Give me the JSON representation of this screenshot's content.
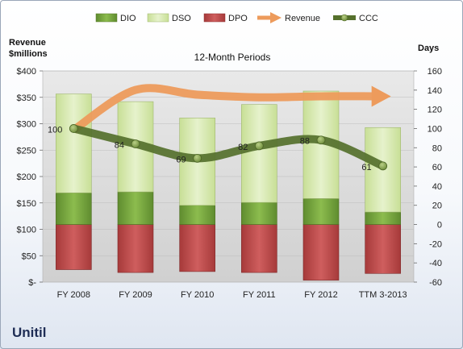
{
  "company": "Unitil",
  "chart_data": {
    "type": "bar",
    "title": "12-Month Periods",
    "categories": [
      "FY 2008",
      "FY 2009",
      "FY 2010",
      "FY 2011",
      "FY 2012",
      "TTM 3-2013"
    ],
    "left_axis": {
      "label_line1": "Revenue",
      "label_line2": "$millions",
      "ticks": [
        "$-",
        "$50",
        "$100",
        "$150",
        "$200",
        "$250",
        "$300",
        "$350",
        "$400"
      ],
      "ylim": [
        0,
        400
      ]
    },
    "right_axis": {
      "label": "Days",
      "ticks": [
        "-60",
        "-40",
        "-20",
        "0",
        "20",
        "40",
        "60",
        "80",
        "100",
        "120",
        "140",
        "160"
      ],
      "ylim": [
        -60,
        160
      ]
    },
    "legend": [
      "DIO",
      "DSO",
      "DPO",
      "Revenue",
      "CCC"
    ],
    "legend_position": "top",
    "bar_series": {
      "DIO": [
        33,
        34,
        20,
        23,
        27,
        13
      ],
      "DSO": [
        103,
        94,
        91,
        102,
        112,
        88
      ],
      "DPO": [
        47,
        50,
        49,
        50,
        58,
        51
      ]
    },
    "line_series": {
      "Revenue": [
        288,
        364,
        355,
        350,
        352,
        352
      ],
      "CCC": [
        100,
        84,
        69,
        82,
        88,
        61
      ]
    },
    "ccc_labels": [
      "100",
      "84",
      "69",
      "82",
      "88",
      "61"
    ],
    "colors": {
      "DIO": "#77a33e",
      "DSO": "#d7e8b0",
      "DPO": "#bf4b4b",
      "Revenue": "#ed9b5c",
      "CCC": "#55702c",
      "plot_bg": "#d9d9d9"
    }
  }
}
